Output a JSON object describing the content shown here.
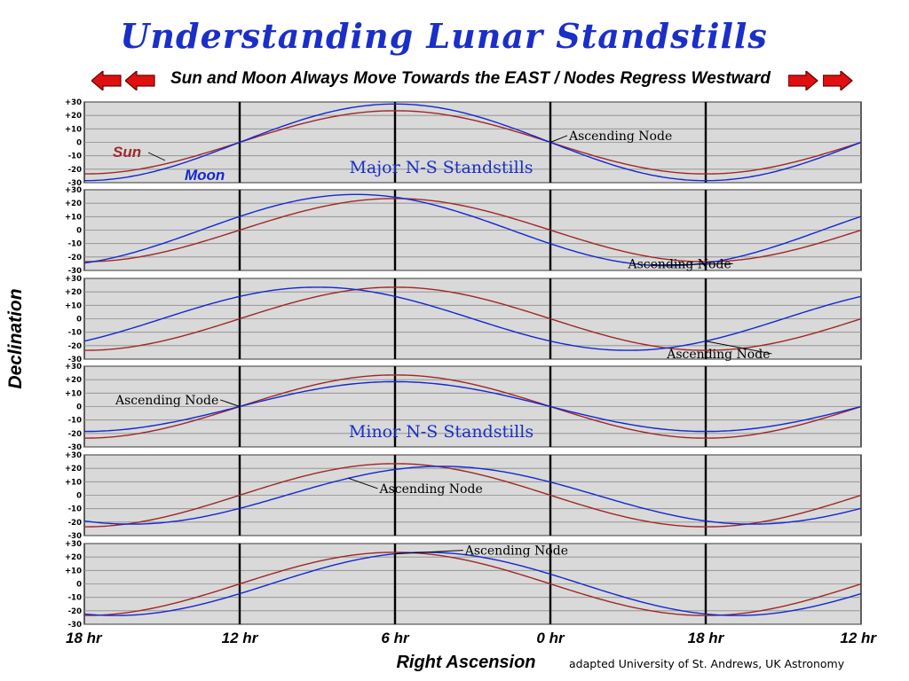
{
  "header": {
    "title": "Understanding Lunar Standstills",
    "subtitle": "Sun and Moon Always Move Towards the EAST / Nodes Regress Westward"
  },
  "footer": {
    "credit": "adapted University of St. Andrews, UK Astronomy"
  },
  "colors": {
    "sun": "#a02828",
    "moon": "#1428d2",
    "panel_bg": "#d9d9d9",
    "arrow": "#e01010",
    "title": "#1a2fc8",
    "standstill_label": "#1a2fc8"
  },
  "chart_data": {
    "type": "line",
    "xlabel": "Right Ascension",
    "ylabel": "Declination",
    "x_tick_labels": [
      "18 hr",
      "12 hr",
      "6 hr",
      "0 hr",
      "18 hr",
      "12 hr"
    ],
    "x_tick_values": [
      0,
      1,
      2,
      3,
      4,
      5
    ],
    "xlim": [
      0,
      5
    ],
    "y_tick_labels": [
      "+30",
      "+20",
      "+10",
      "0",
      "-10",
      "-20",
      "-30"
    ],
    "y_tick_values": [
      30,
      20,
      10,
      0,
      -10,
      -20,
      -30
    ],
    "ylim": [
      -30,
      30
    ],
    "grid": true,
    "legend_labels": {
      "sun": "Sun",
      "moon": "Moon"
    },
    "panels": [
      {
        "group_label": "Major N-S Standstills",
        "sun_amplitude": 23.5,
        "moon_amplitude": 28.5,
        "moon_phase_offset": 0,
        "node_label": "Ascending Node",
        "node_x": 3.0,
        "node_label_side": "right",
        "node_label_pos": [
          3.12,
          5
        ]
      },
      {
        "group_label": "",
        "sun_amplitude": 23.5,
        "moon_amplitude": 26.5,
        "moon_phase_offset": -0.25,
        "node_label": "Ascending Node",
        "node_x": 3.63,
        "node_label_side": "left",
        "node_label_pos": [
          3.5,
          -25
        ]
      },
      {
        "group_label": "",
        "sun_amplitude": 23.5,
        "moon_amplitude": 23.5,
        "moon_phase_offset": -0.5,
        "node_label": "Ascending Node",
        "node_x": 4.0,
        "node_label_side": "left",
        "node_label_pos": [
          3.75,
          -26
        ]
      },
      {
        "group_label": "Minor N-S Standstills",
        "sun_amplitude": 23.5,
        "moon_amplitude": 18.5,
        "moon_phase_offset": 0,
        "node_label": "Ascending Node",
        "node_x": 1.0,
        "node_label_side": "left",
        "node_label_pos": [
          0.2,
          5
        ]
      },
      {
        "group_label": "",
        "sun_amplitude": 23.5,
        "moon_amplitude": 21.5,
        "moon_phase_offset": 0.3,
        "node_label": "Ascending Node",
        "node_x": 1.7,
        "node_label_side": "right",
        "node_label_pos": [
          1.9,
          5
        ]
      },
      {
        "group_label": "",
        "sun_amplitude": 23.5,
        "moon_amplitude": 23.5,
        "moon_phase_offset": 0.2,
        "node_label": "Ascending Node",
        "node_x": 2.0,
        "node_label_side": "right",
        "node_label_pos": [
          2.45,
          25
        ]
      }
    ]
  }
}
